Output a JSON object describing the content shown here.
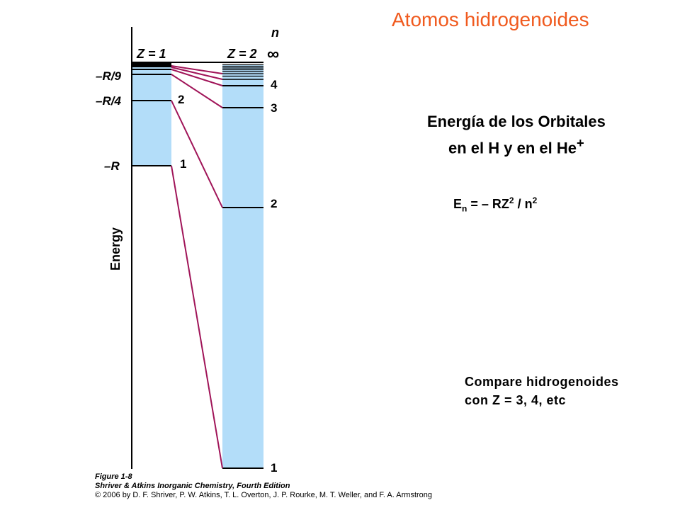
{
  "slide": {
    "title": "Atomos hidrogenoides",
    "heading_line1": "Energía de los Orbitales",
    "heading_line2": "en el H y en el He",
    "heading_sup": "+",
    "formula": {
      "e": "E",
      "e_sub": "n",
      "mid": " = – RZ",
      "z_sup": "2",
      "slash": " / n",
      "n_sup": "2"
    },
    "compare_line1": "Compare hidrogenoides",
    "compare_line2": "con Z = 3, 4, etc"
  },
  "diagram": {
    "y_axis_label": "Energy",
    "n_label": "n",
    "infinity_label": "∞",
    "z1_label": "Z = 1",
    "z2_label": "Z = 2",
    "left_labels": {
      "r9": "–R/9",
      "r4": "–R/4",
      "r": "–R"
    },
    "z1_level_labels": {
      "n2": "2",
      "n1": "1"
    },
    "z2_level_labels": {
      "n4": "4",
      "n3": "3",
      "n2": "2",
      "n1": "1"
    },
    "colors": {
      "column_fill": "#b3ddf9",
      "connector": "#a01458",
      "title": "#f05a1e"
    }
  },
  "caption": {
    "figure": "Figure 1-8",
    "book": "Shriver & Atkins Inorganic Chemistry, Fourth Edition",
    "copyright": "© 2006 by D. F. Shriver, P. W. Atkins, T. L. Overton, J. P. Rourke, M. T. Weller, and F. A. Armstrong"
  }
}
